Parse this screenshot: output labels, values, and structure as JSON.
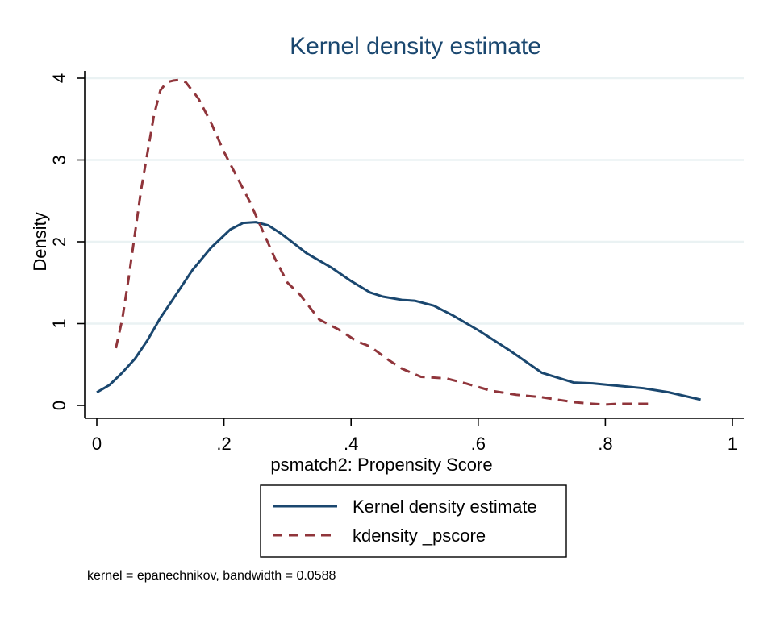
{
  "chart_data": {
    "type": "line",
    "title": "Kernel density estimate",
    "xlabel": "psmatch2: Propensity Score",
    "ylabel": "Density",
    "xlim": [
      0,
      1
    ],
    "ylim": [
      0,
      4
    ],
    "xticks": [
      0,
      0.2,
      0.4,
      0.6,
      0.8,
      1
    ],
    "xtick_labels": [
      "0",
      ".2",
      ".4",
      ".6",
      ".8",
      "1"
    ],
    "yticks": [
      0,
      1,
      2,
      3,
      4
    ],
    "ytick_labels": [
      "0",
      "1",
      "2",
      "3",
      "4"
    ],
    "grid": true,
    "legend_position": "bottom",
    "note": "kernel = epanechnikov, bandwidth = 0.0588",
    "series": [
      {
        "name": "Kernel density estimate",
        "style": "solid",
        "color": "#1a476f",
        "x": [
          0.0,
          0.02,
          0.04,
          0.06,
          0.08,
          0.1,
          0.12,
          0.15,
          0.18,
          0.21,
          0.23,
          0.25,
          0.27,
          0.29,
          0.33,
          0.37,
          0.4,
          0.43,
          0.45,
          0.48,
          0.5,
          0.53,
          0.56,
          0.6,
          0.65,
          0.7,
          0.75,
          0.78,
          0.82,
          0.86,
          0.9,
          0.95
        ],
        "y": [
          0.16,
          0.25,
          0.4,
          0.57,
          0.8,
          1.07,
          1.3,
          1.65,
          1.93,
          2.15,
          2.23,
          2.24,
          2.2,
          2.1,
          1.86,
          1.68,
          1.52,
          1.38,
          1.33,
          1.29,
          1.28,
          1.22,
          1.1,
          0.92,
          0.67,
          0.4,
          0.28,
          0.27,
          0.24,
          0.21,
          0.16,
          0.07
        ]
      },
      {
        "name": "kdensity _pscore",
        "style": "dashed",
        "color": "#90353b",
        "x": [
          0.03,
          0.04,
          0.05,
          0.06,
          0.07,
          0.08,
          0.09,
          0.1,
          0.11,
          0.12,
          0.13,
          0.14,
          0.16,
          0.18,
          0.2,
          0.22,
          0.24,
          0.26,
          0.28,
          0.3,
          0.32,
          0.35,
          0.38,
          0.41,
          0.43,
          0.46,
          0.48,
          0.51,
          0.55,
          0.58,
          0.62,
          0.66,
          0.7,
          0.75,
          0.78,
          0.8,
          0.82,
          0.85,
          0.87
        ],
        "y": [
          0.7,
          1.05,
          1.55,
          2.1,
          2.65,
          3.1,
          3.55,
          3.85,
          3.95,
          3.97,
          3.98,
          3.95,
          3.75,
          3.45,
          3.1,
          2.8,
          2.5,
          2.15,
          1.8,
          1.5,
          1.35,
          1.05,
          0.93,
          0.78,
          0.72,
          0.55,
          0.45,
          0.35,
          0.33,
          0.27,
          0.18,
          0.13,
          0.1,
          0.04,
          0.02,
          0.01,
          0.02,
          0.02,
          0.02
        ]
      }
    ]
  }
}
